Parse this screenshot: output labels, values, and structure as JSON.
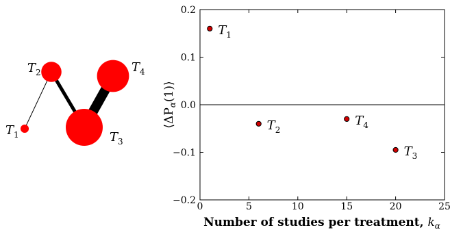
{
  "network": {
    "nodes": [
      {
        "id": "T1",
        "label": "T",
        "sub": "1",
        "size": 1
      },
      {
        "id": "T2",
        "label": "T",
        "sub": "2",
        "size": 6
      },
      {
        "id": "T3",
        "label": "T",
        "sub": "3",
        "size": 20
      },
      {
        "id": "T4",
        "label": "T",
        "sub": "4",
        "size": 15
      }
    ],
    "edges": [
      {
        "from": "T1",
        "to": "T2",
        "weight": 1
      },
      {
        "from": "T2",
        "to": "T3",
        "weight": 5
      },
      {
        "from": "T3",
        "to": "T4",
        "weight": 14
      }
    ],
    "node_color": "#ff0000",
    "edge_color": "#000000"
  },
  "chart_data": {
    "type": "scatter",
    "title": "",
    "xlabel": "Number of studies per treatment, ",
    "xlabel_math": "k",
    "xlabel_math_sub": "α",
    "ylabel": "⟨ΔP",
    "ylabel_sub": "α",
    "ylabel_tail": "(1)⟩",
    "xlim": [
      0,
      25
    ],
    "ylim": [
      -0.2,
      0.2
    ],
    "xticks": [
      0,
      5,
      10,
      15,
      20,
      25
    ],
    "yticks": [
      -0.2,
      -0.1,
      0.0,
      0.1,
      0.2
    ],
    "xtick_labels": [
      "0",
      "5",
      "10",
      "15",
      "20",
      "25"
    ],
    "ytick_labels": [
      "−0.2",
      "−0.1",
      "0.0",
      "0.1",
      "0.2"
    ],
    "reference_line_y": 0.0,
    "marker_color": "#d00000",
    "points": [
      {
        "label": "T",
        "sub": "1",
        "x": 1,
        "y": 0.16
      },
      {
        "label": "T",
        "sub": "2",
        "x": 6,
        "y": -0.04
      },
      {
        "label": "T",
        "sub": "4",
        "x": 15,
        "y": -0.03
      },
      {
        "label": "T",
        "sub": "3",
        "x": 20,
        "y": -0.095
      }
    ]
  }
}
